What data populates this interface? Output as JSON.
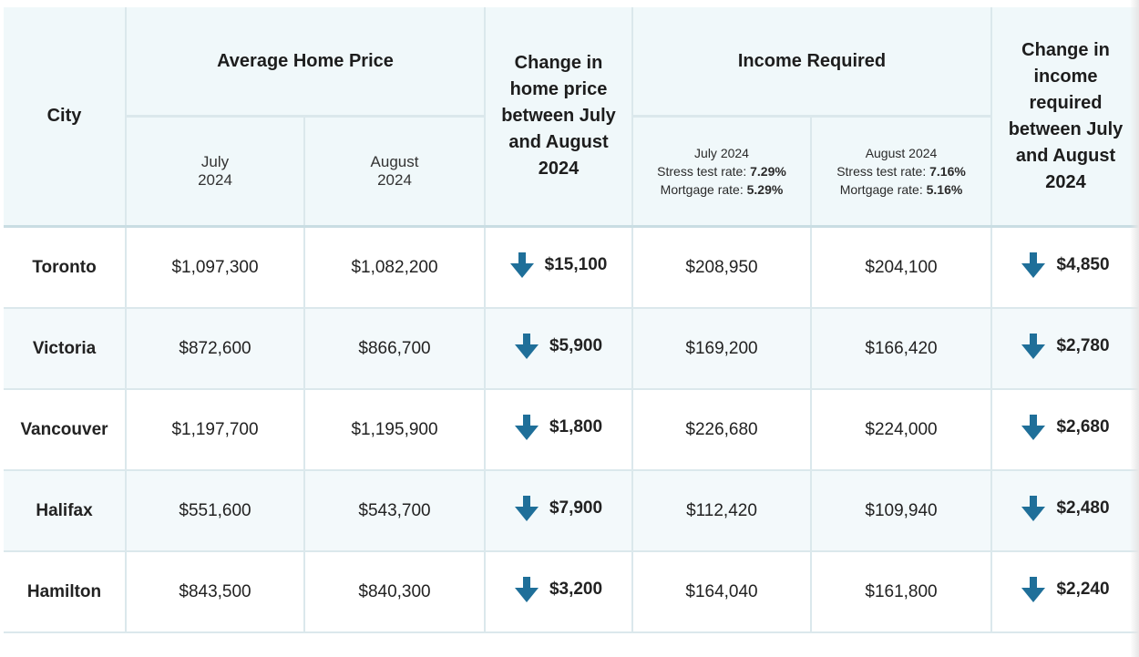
{
  "header": {
    "city": "City",
    "avg_home_price": "Average Home Price",
    "change_home_price": "Change in home price between July and August 2024",
    "income_required": "Income Required",
    "change_income": "Change in income required between July and August 2024",
    "price_july": "July 2024",
    "price_august": "August 2024",
    "income_july": {
      "month": "July 2024",
      "stress_label": "Stress test rate: ",
      "stress_value": "7.29%",
      "mortgage_label": "Mortgage rate: ",
      "mortgage_value": "5.29%"
    },
    "income_august": {
      "month": "August 2024",
      "stress_label": "Stress test rate: ",
      "stress_value": "7.16%",
      "mortgage_label": "Mortgage rate: ",
      "mortgage_value": "5.16%"
    }
  },
  "rows": [
    {
      "city": "Toronto",
      "price_july": "$1,097,300",
      "price_august": "$1,082,200",
      "price_change": "$15,100",
      "income_july": "$208,950",
      "income_august": "$204,100",
      "income_change": "$4,850"
    },
    {
      "city": "Victoria",
      "price_july": "$872,600",
      "price_august": "$866,700",
      "price_change": "$5,900",
      "income_july": "$169,200",
      "income_august": "$166,420",
      "income_change": "$2,780"
    },
    {
      "city": "Vancouver",
      "price_july": "$1,197,700",
      "price_august": "$1,195,900",
      "price_change": "$1,800",
      "income_july": "$226,680",
      "income_august": "$224,000",
      "income_change": "$2,680"
    },
    {
      "city": "Halifax",
      "price_july": "$551,600",
      "price_august": "$543,700",
      "price_change": "$7,900",
      "income_july": "$112,420",
      "income_august": "$109,940",
      "income_change": "$2,480"
    },
    {
      "city": "Hamilton",
      "price_july": "$843,500",
      "price_august": "$840,300",
      "price_change": "$3,200",
      "income_july": "$164,040",
      "income_august": "$161,800",
      "income_change": "$2,240"
    }
  ],
  "icons": {
    "decrease": "arrow-down-icon"
  },
  "colors": {
    "header_bg": "#f0f8fa",
    "row_alt_bg": "#f3f9fb",
    "change_text": "#1f6f99",
    "arrow": "#1f6f99"
  }
}
